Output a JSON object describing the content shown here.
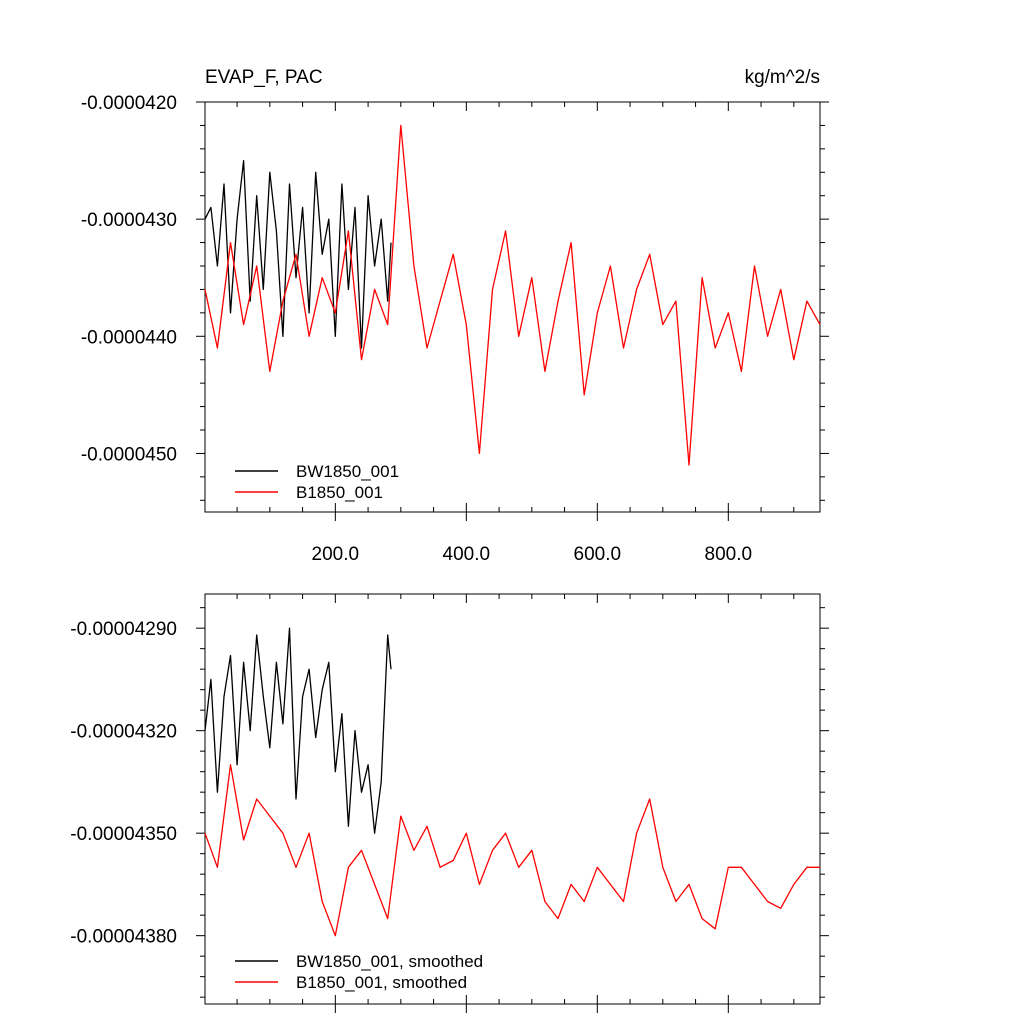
{
  "chart_data": [
    {
      "type": "line",
      "title_left": "EVAP_F, PAC",
      "title_right": "kg/m^2/s",
      "xlabel": "",
      "ylabel": "",
      "xlim": [
        1,
        940
      ],
      "ylim": [
        -4.55e-05,
        -4.2e-05
      ],
      "x_ticks": [
        200,
        400,
        600,
        800
      ],
      "x_tick_labels": [
        "200.0",
        "400.0",
        "600.0",
        "800.0"
      ],
      "y_ticks": [
        -4.2e-05,
        -4.3e-05,
        -4.4e-05,
        -4.5e-05
      ],
      "y_tick_labels": [
        "-0.0000420",
        "-0.0000430",
        "-0.0000440",
        "-0.0000450"
      ],
      "grid": false,
      "legend": "bottom-left",
      "series": [
        {
          "name": "BW1850_001",
          "color": "#000000",
          "x": [
            1,
            10,
            20,
            30,
            40,
            50,
            60,
            70,
            80,
            90,
            100,
            110,
            120,
            130,
            140,
            150,
            160,
            170,
            180,
            190,
            200,
            210,
            220,
            230,
            240,
            250,
            260,
            270,
            280,
            285
          ],
          "values": [
            -4.3e-05,
            -4.29e-05,
            -4.34e-05,
            -4.27e-05,
            -4.38e-05,
            -4.3e-05,
            -4.25e-05,
            -4.37e-05,
            -4.28e-05,
            -4.36e-05,
            -4.26e-05,
            -4.31e-05,
            -4.4e-05,
            -4.27e-05,
            -4.35e-05,
            -4.29e-05,
            -4.38e-05,
            -4.26e-05,
            -4.33e-05,
            -4.3e-05,
            -4.4e-05,
            -4.27e-05,
            -4.36e-05,
            -4.29e-05,
            -4.41e-05,
            -4.28e-05,
            -4.34e-05,
            -4.3e-05,
            -4.37e-05,
            -4.32e-05
          ]
        },
        {
          "name": "B1850_001",
          "color": "#ff0000",
          "x": [
            1,
            20,
            40,
            60,
            80,
            100,
            120,
            140,
            160,
            180,
            200,
            220,
            240,
            260,
            280,
            300,
            320,
            340,
            360,
            380,
            400,
            420,
            440,
            460,
            480,
            500,
            520,
            540,
            560,
            580,
            600,
            620,
            640,
            660,
            680,
            700,
            720,
            740,
            760,
            780,
            800,
            820,
            840,
            860,
            880,
            900,
            920,
            940
          ],
          "values": [
            -4.36e-05,
            -4.41e-05,
            -4.32e-05,
            -4.39e-05,
            -4.34e-05,
            -4.43e-05,
            -4.37e-05,
            -4.33e-05,
            -4.4e-05,
            -4.35e-05,
            -4.38e-05,
            -4.31e-05,
            -4.42e-05,
            -4.36e-05,
            -4.39e-05,
            -4.22e-05,
            -4.34e-05,
            -4.41e-05,
            -4.37e-05,
            -4.33e-05,
            -4.39e-05,
            -4.5e-05,
            -4.36e-05,
            -4.31e-05,
            -4.4e-05,
            -4.35e-05,
            -4.43e-05,
            -4.37e-05,
            -4.32e-05,
            -4.45e-05,
            -4.38e-05,
            -4.34e-05,
            -4.41e-05,
            -4.36e-05,
            -4.33e-05,
            -4.39e-05,
            -4.37e-05,
            -4.51e-05,
            -4.35e-05,
            -4.41e-05,
            -4.38e-05,
            -4.43e-05,
            -4.34e-05,
            -4.4e-05,
            -4.36e-05,
            -4.42e-05,
            -4.37e-05,
            -4.39e-05
          ]
        }
      ]
    },
    {
      "type": "line",
      "title_left": "",
      "title_right": "",
      "xlabel": "",
      "ylabel": "",
      "xlim": [
        1,
        940
      ],
      "ylim": [
        -4.4e-05,
        -4.28e-05
      ],
      "x_ticks": [
        200,
        400,
        600,
        800
      ],
      "x_tick_labels": [],
      "y_ticks": [
        -4.29e-05,
        -4.32e-05,
        -4.35e-05,
        -4.38e-05
      ],
      "y_tick_labels": [
        "-0.00004290",
        "-0.00004320",
        "-0.00004350",
        "-0.00004380"
      ],
      "grid": false,
      "legend": "bottom-left",
      "series": [
        {
          "name": "BW1850_001, smoothed",
          "color": "#000000",
          "x": [
            1,
            10,
            20,
            30,
            40,
            50,
            60,
            70,
            80,
            90,
            100,
            110,
            120,
            130,
            140,
            150,
            160,
            170,
            180,
            190,
            200,
            210,
            220,
            230,
            240,
            250,
            260,
            270,
            280,
            285
          ],
          "values": [
            -4.32e-05,
            -4.305e-05,
            -4.338e-05,
            -4.31e-05,
            -4.298e-05,
            -4.33e-05,
            -4.3e-05,
            -4.32e-05,
            -4.292e-05,
            -4.31e-05,
            -4.325e-05,
            -4.3e-05,
            -4.318e-05,
            -4.29e-05,
            -4.34e-05,
            -4.31e-05,
            -4.302e-05,
            -4.322e-05,
            -4.308e-05,
            -4.3e-05,
            -4.332e-05,
            -4.315e-05,
            -4.348e-05,
            -4.32e-05,
            -4.338e-05,
            -4.33e-05,
            -4.35e-05,
            -4.335e-05,
            -4.292e-05,
            -4.302e-05
          ]
        },
        {
          "name": "B1850_001, smoothed",
          "color": "#ff0000",
          "x": [
            1,
            20,
            40,
            60,
            80,
            100,
            120,
            140,
            160,
            180,
            200,
            220,
            240,
            260,
            280,
            300,
            320,
            340,
            360,
            380,
            400,
            420,
            440,
            460,
            480,
            500,
            520,
            540,
            560,
            580,
            600,
            620,
            640,
            660,
            680,
            700,
            720,
            740,
            760,
            780,
            800,
            820,
            840,
            860,
            880,
            900,
            920,
            940
          ],
          "values": [
            -4.35e-05,
            -4.36e-05,
            -4.33e-05,
            -4.352e-05,
            -4.34e-05,
            -4.345e-05,
            -4.35e-05,
            -4.36e-05,
            -4.35e-05,
            -4.37e-05,
            -4.38e-05,
            -4.36e-05,
            -4.355e-05,
            -4.365e-05,
            -4.375e-05,
            -4.345e-05,
            -4.355e-05,
            -4.348e-05,
            -4.36e-05,
            -4.358e-05,
            -4.35e-05,
            -4.365e-05,
            -4.355e-05,
            -4.35e-05,
            -4.36e-05,
            -4.355e-05,
            -4.37e-05,
            -4.375e-05,
            -4.365e-05,
            -4.37e-05,
            -4.36e-05,
            -4.365e-05,
            -4.37e-05,
            -4.35e-05,
            -4.34e-05,
            -4.36e-05,
            -4.37e-05,
            -4.365e-05,
            -4.375e-05,
            -4.378e-05,
            -4.36e-05,
            -4.36e-05,
            -4.365e-05,
            -4.37e-05,
            -4.372e-05,
            -4.365e-05,
            -4.36e-05,
            -4.36e-05
          ]
        }
      ]
    }
  ]
}
